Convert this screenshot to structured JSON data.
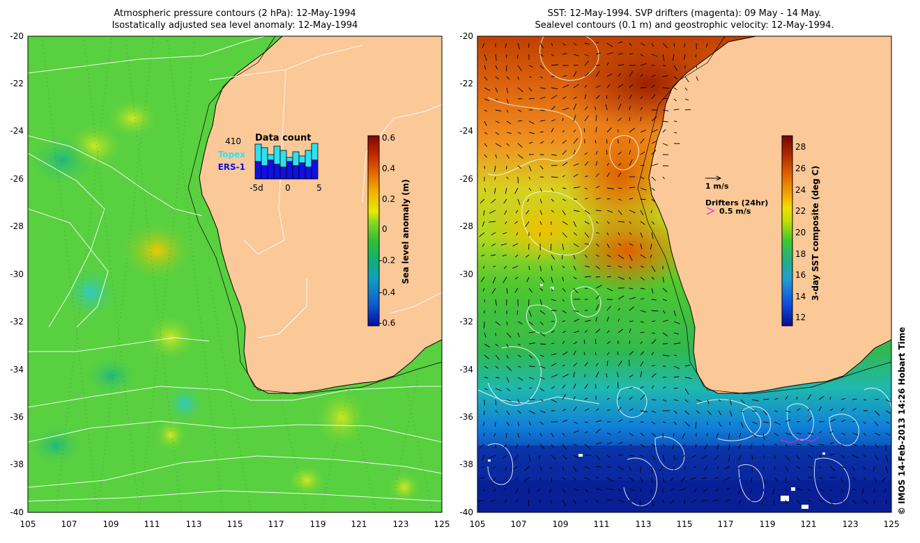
{
  "left": {
    "title1": "Atmospheric pressure contours (2 hPa): 12-May-1994",
    "title2": "Isostatically adjusted sea level anomaly: 12-May-1994",
    "colorbar_label": "Sea level anomaly (m)",
    "colorbar_ticks": [
      "0.6",
      "0.4",
      "0.2",
      "0",
      "-0.2",
      "-0.4",
      "-0.6"
    ],
    "colorbar_colors": [
      "#7a0a00",
      "#c02a00",
      "#e86a00",
      "#f0b400",
      "#e8e800",
      "#90d820",
      "#30c030",
      "#10b070",
      "#10a0c0",
      "#1060d0",
      "#0010a0"
    ],
    "inset": {
      "title": "Data count",
      "max": "410",
      "series1": "Topex",
      "series2": "ERS-1",
      "series1_color": "#30e0f0",
      "series2_color": "#1010e0",
      "ticks": [
        "-5d",
        "0",
        "5"
      ]
    }
  },
  "right": {
    "title1": "SST: 12-May-1994. SVP drifters (magenta): 09 May - 14 May.",
    "title2": "Sealevel contours (0.1 m) and geostrophic velocity: 12-May-1994.",
    "colorbar_label": "3-day SST composite (deg C)",
    "colorbar_ticks": [
      "28",
      "26",
      "24",
      "22",
      "20",
      "18",
      "16",
      "14",
      "12"
    ],
    "colorbar_colors": [
      "#700800",
      "#b02800",
      "#e06000",
      "#f0a000",
      "#f0e000",
      "#c0e000",
      "#40c830",
      "#20b080",
      "#20a0d0",
      "#1050e0",
      "#001090"
    ],
    "velocity_label": "1 m/s",
    "drifters_label": "Drifters (24hr)",
    "drifters_speed": "0.5 m/s",
    "drifter_color": "#e020e0"
  },
  "axes": {
    "x_ticks": [
      "105",
      "107",
      "109",
      "111",
      "113",
      "115",
      "117",
      "119",
      "121",
      "123",
      "125"
    ],
    "y_ticks": [
      "-20",
      "-22",
      "-24",
      "-26",
      "-28",
      "-30",
      "-32",
      "-34",
      "-36",
      "-38",
      "-40"
    ]
  },
  "colors": {
    "land": "#fbc898",
    "ocean_left": "#58d040",
    "ocean_right_warm": "#e87a10",
    "ocean_right_cool": "#0a2aa0"
  },
  "credit": "© IMOS 14-Feb-2013 14:26 Hobart Time"
}
